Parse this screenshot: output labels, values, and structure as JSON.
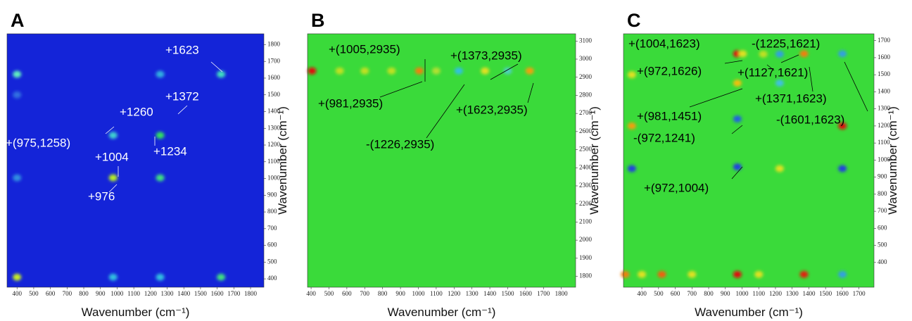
{
  "chart_data": [
    {
      "type": "heatmap",
      "panel": "A",
      "xlabel": "Wavenumber (cm⁻¹)",
      "ylabel": "Wavenumber (cm⁻¹)",
      "xlim": [
        340,
        1880
      ],
      "ylim": [
        350,
        1865
      ],
      "xticks": [
        400,
        500,
        600,
        700,
        800,
        900,
        1000,
        1100,
        1200,
        1300,
        1400,
        1500,
        1600,
        1700,
        1800
      ],
      "yticks": [
        400,
        500,
        600,
        700,
        800,
        900,
        1000,
        1100,
        1200,
        1300,
        1400,
        1500,
        1600,
        1700,
        1800
      ],
      "background": "#1424d8",
      "annotation_color": "#ffffff",
      "points": {
        "x": [
          976,
          1258,
          1623,
          400,
          976,
          1258,
          1258,
          400,
          1623,
          976,
          1258,
          400,
          400
        ],
        "y": [
          1004,
          1258,
          1623,
          410,
          1258,
          1004,
          1623,
          1623,
          410,
          410,
          410,
          1004,
          1500
        ],
        "colors": [
          "#b8f020",
          "#30e060",
          "#40e0c0",
          "#c8f020",
          "#40d0d0",
          "#40e080",
          "#30b0e0",
          "#60f0c0",
          "#40e080",
          "#30c0e0",
          "#30c0e0",
          "#3090e0",
          "#3070e0"
        ]
      },
      "annotations": [
        "+1623",
        "+1372",
        "+1260",
        "+(975,1258)",
        "+1234",
        "+1004",
        "+976"
      ]
    },
    {
      "type": "heatmap",
      "panel": "B",
      "xlabel": "Wavenumber (cm⁻¹)",
      "ylabel": "Wavenumber (cm⁻¹)",
      "xlim": [
        380,
        1880
      ],
      "ylim": [
        1740,
        3140
      ],
      "xticks": [
        400,
        500,
        600,
        700,
        800,
        900,
        1000,
        1100,
        1200,
        1300,
        1400,
        1500,
        1600,
        1700,
        1800
      ],
      "yticks": [
        1800,
        1900,
        2000,
        2100,
        2200,
        2300,
        2400,
        2500,
        2600,
        2700,
        2800,
        2900,
        3000,
        3100
      ],
      "background": "#3ada3a",
      "annotation_color": "#000000",
      "points": {
        "x": [
          405,
          1005,
          1226,
          1373,
          1623,
          560,
          700,
          850,
          1100,
          1500
        ],
        "y": [
          2935,
          2935,
          2935,
          2935,
          2935,
          2935,
          2935,
          2935,
          2935,
          2935
        ],
        "colors": [
          "#e01010",
          "#f08010",
          "#30c0e0",
          "#e0e020",
          "#f0a010",
          "#c0e020",
          "#c0e020",
          "#c0e020",
          "#b0e030",
          "#50d0c0"
        ]
      },
      "annotations": [
        "+(1005,2935)",
        "+(1373,2935)",
        "+(981,2935)",
        "+(1623,2935)",
        "-(1226,2935)"
      ]
    },
    {
      "type": "heatmap",
      "panel": "C",
      "xlabel": "Wavenumber (cm⁻¹)",
      "ylabel": "Wavenumber (cm⁻¹)",
      "xlim": [
        290,
        1790
      ],
      "ylim": [
        255,
        1740
      ],
      "xticks": [
        400,
        500,
        600,
        700,
        800,
        900,
        1000,
        1100,
        1200,
        1300,
        1400,
        1500,
        1600,
        1700
      ],
      "yticks": [
        400,
        500,
        600,
        700,
        800,
        900,
        1000,
        1100,
        1200,
        1300,
        1400,
        1500,
        1600,
        1700
      ],
      "background": "#3ada3a",
      "annotation_color": "#000000",
      "points": {
        "x": [
          972,
          1004,
          1225,
          1127,
          1371,
          1601,
          300,
          400,
          520,
          700,
          972,
          1100,
          1371,
          1601,
          340,
          972,
          1225,
          1601,
          972,
          1601,
          340,
          340,
          972,
          1225
        ],
        "y": [
          1623,
          1623,
          1621,
          1621,
          1623,
          1623,
          330,
          330,
          330,
          330,
          330,
          330,
          330,
          330,
          950,
          960,
          950,
          950,
          1241,
          1200,
          1200,
          1500,
          1451,
          1451
        ],
        "colors": [
          "#e01010",
          "#e0e020",
          "#30a0e0",
          "#c0e020",
          "#f08010",
          "#30a0e0",
          "#f08010",
          "#e0e020",
          "#f06010",
          "#e0e020",
          "#e01010",
          "#e0e020",
          "#e02010",
          "#30a0e0",
          "#2040e0",
          "#2040e0",
          "#e0e020",
          "#2040e0",
          "#2060e0",
          "#e01010",
          "#f0a010",
          "#e0e020",
          "#f0c010",
          "#40c0e0"
        ]
      },
      "annotations": [
        "+(1004,1623)",
        "-(1225,1621)",
        "+(972,1626)",
        "+(1127,1621)",
        "+(1371,1623)",
        "+(981,1451)",
        "-(1601,1623)",
        "-(972,1241)",
        "+(972,1004)"
      ]
    }
  ]
}
